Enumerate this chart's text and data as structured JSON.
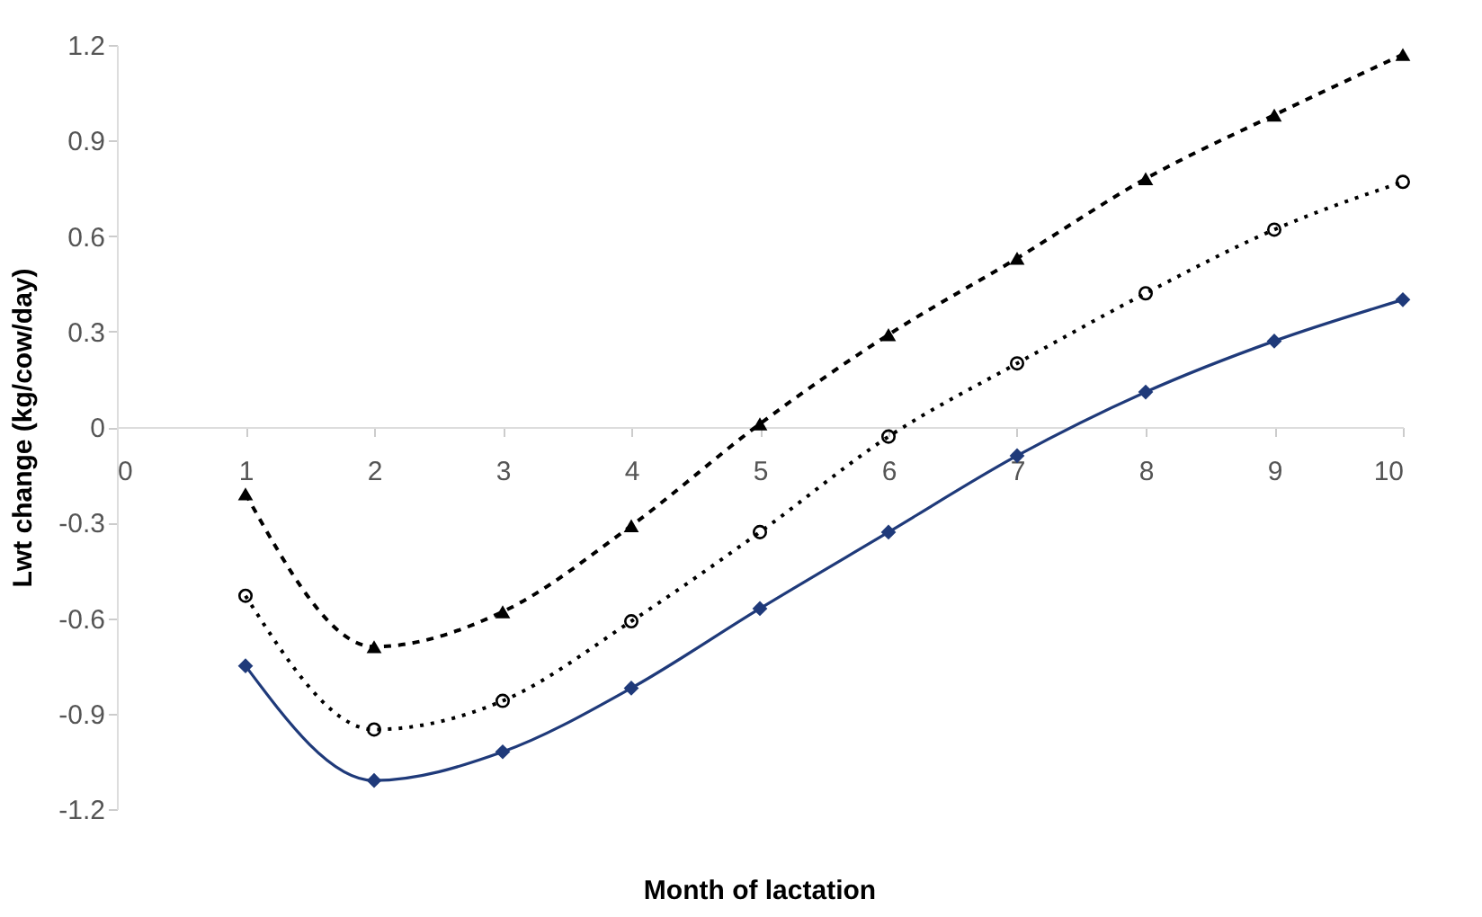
{
  "chart_data": {
    "type": "line",
    "xlabel": "Month of lactation",
    "ylabel": "Lwt change (kg/cow/day)",
    "x": [
      1,
      2,
      3,
      4,
      5,
      6,
      7,
      8,
      9,
      10
    ],
    "series": [
      {
        "color": "#000000",
        "marker": "triangle",
        "line_style": "dashed",
        "values": [
          -0.21,
          -0.69,
          -0.58,
          -0.31,
          0.01,
          0.29,
          0.53,
          0.78,
          0.98,
          1.17
        ]
      },
      {
        "color": "#000000",
        "marker": "circle",
        "line_style": "dotted",
        "values": [
          -0.53,
          -0.95,
          -0.86,
          -0.61,
          -0.33,
          -0.03,
          0.2,
          0.42,
          0.62,
          0.77
        ]
      },
      {
        "color": "#1f3a7a",
        "marker": "diamond",
        "line_style": "solid",
        "values": [
          -0.75,
          -1.11,
          -1.02,
          -0.82,
          -0.57,
          -0.33,
          -0.09,
          0.11,
          0.27,
          0.4
        ]
      }
    ],
    "xlim": [
      0,
      10
    ],
    "xticks": [
      0,
      1,
      2,
      3,
      4,
      5,
      6,
      7,
      8,
      9,
      10
    ],
    "ylim": [
      -1.2,
      1.2
    ],
    "yticks": [
      -1.2,
      -0.9,
      -0.6,
      -0.3,
      0,
      0.3,
      0.6,
      0.9,
      1.2
    ],
    "grid": false
  }
}
